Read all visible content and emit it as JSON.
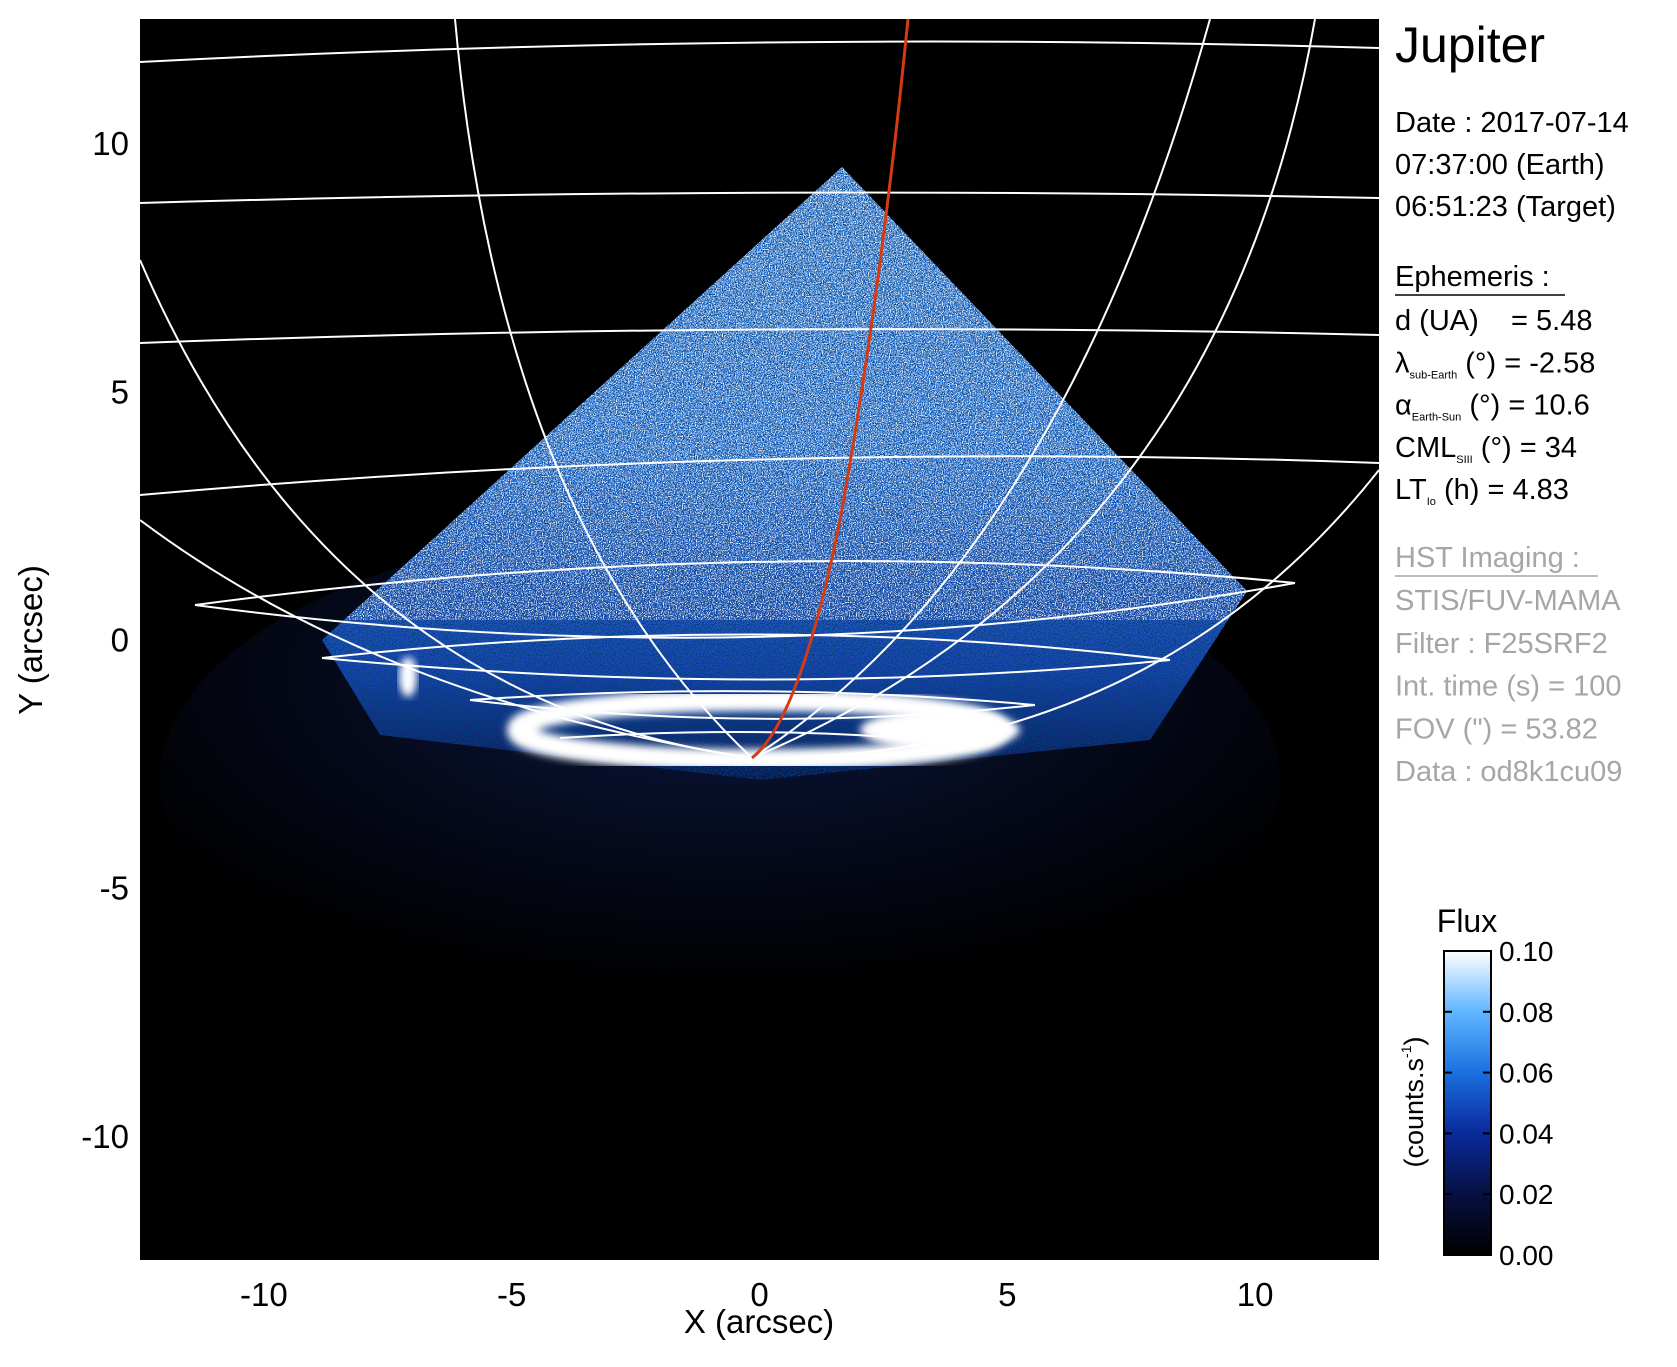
{
  "chart_data": {
    "type": "image",
    "title": "Jupiter",
    "x_label": "X (arcsec)",
    "y_label": "Y (arcsec)",
    "xlim": [
      -12.5,
      12.5
    ],
    "ylim": [
      -12.5,
      12.5
    ],
    "xticks": [
      -10,
      -5,
      0,
      5,
      10
    ],
    "yticks": [
      -10,
      -5,
      0,
      5,
      10
    ],
    "observation": [
      "Date : 2017-07-14",
      "07:37:00 (Earth)",
      "06:51:23 (Target)"
    ],
    "ephemeris_title": "Ephemeris :",
    "ephemeris": [
      {
        "symbol": "d (UA)    = 5.48"
      },
      {
        "symbol": "λ",
        "subscript": "sub-Earth",
        "text": " (°) = -2.58"
      },
      {
        "symbol": "α",
        "subscript": "Earth-Sun",
        "text": " (°) = 10.6"
      },
      {
        "symbol": "CML",
        "subscript": "SIII",
        "text": " (°) = 34"
      },
      {
        "symbol": "LT",
        "subscript": "Io",
        "text": " (h) = 4.83"
      }
    ],
    "imaging_title": "HST Imaging :",
    "imaging": [
      "STIS/FUV-MAMA",
      "Filter : F25SRF2",
      "Int. time (s) = 100",
      "FOV (\") = 53.82",
      "Data : od8k1cu09"
    ],
    "colorbar": {
      "title": "Flux",
      "unit": {
        "text": "(counts.s",
        "superscript": "-1",
        "close": ")"
      },
      "lim": [
        0,
        0.1
      ],
      "ticks": [
        {
          "value": 0,
          "label": "0.00"
        },
        0.02,
        0.04,
        0.06,
        0.08,
        {
          "value": 0.1,
          "label": "0.10"
        }
      ],
      "colormap": [
        "#000000",
        "#061040",
        "#0a2a9a",
        "#1b6fe0",
        "#5fb6ff",
        "#ffffff"
      ]
    }
  }
}
